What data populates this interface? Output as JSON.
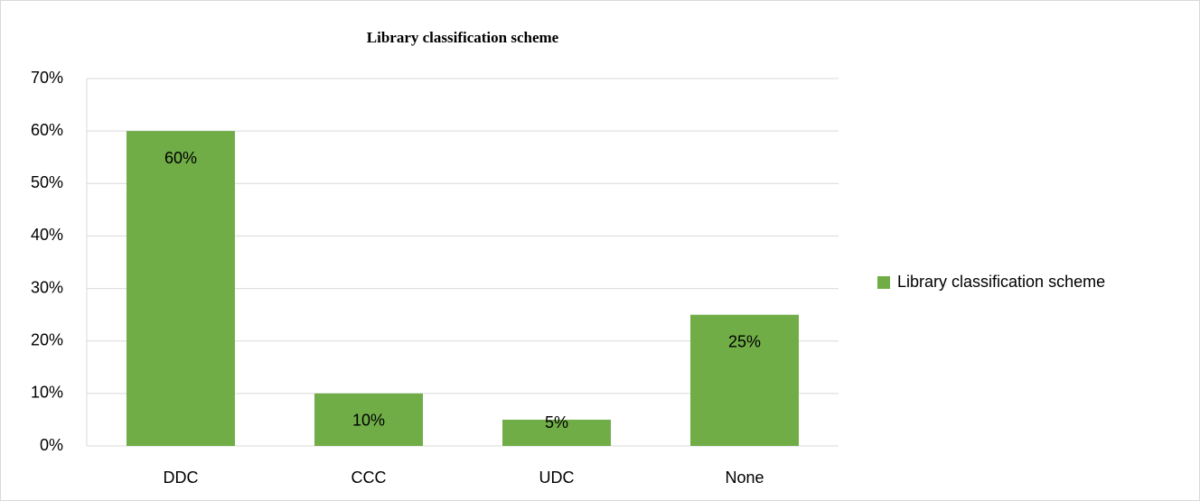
{
  "chart_data": {
    "type": "bar",
    "title": "Library classification scheme",
    "categories": [
      "DDC",
      "CCC",
      "UDC",
      "None"
    ],
    "series": [
      {
        "name": "Library classification scheme",
        "color": "#70ad47",
        "values": [
          60,
          10,
          5,
          25
        ],
        "value_labels": [
          "60%",
          "10%",
          "5%",
          "25%"
        ]
      }
    ],
    "ylim": [
      0,
      70
    ],
    "yticks": [
      {
        "value": 0,
        "label": "0%"
      },
      {
        "value": 10,
        "label": "10%"
      },
      {
        "value": 20,
        "label": "20%"
      },
      {
        "value": 30,
        "label": "30%"
      },
      {
        "value": 40,
        "label": "40%"
      },
      {
        "value": 50,
        "label": "50%"
      },
      {
        "value": 60,
        "label": "60%"
      },
      {
        "value": 70,
        "label": "70%"
      }
    ],
    "grid": true,
    "legend": "right"
  }
}
